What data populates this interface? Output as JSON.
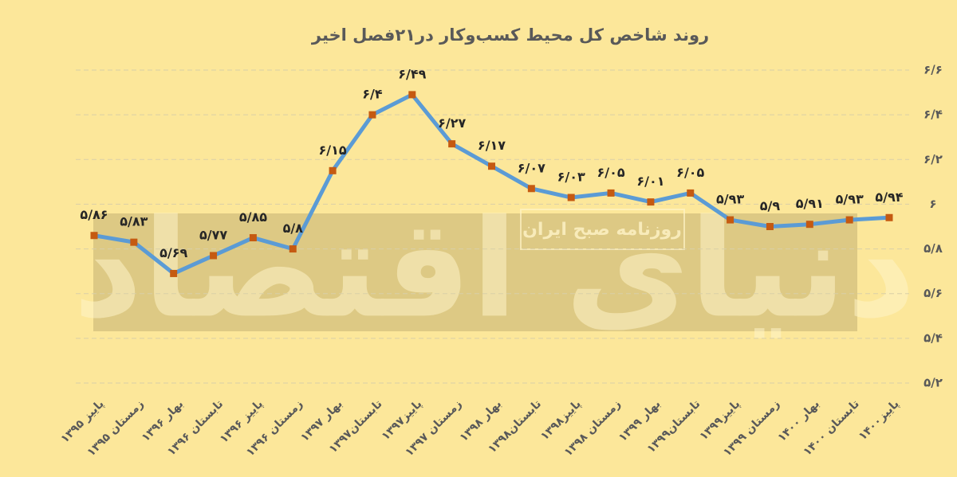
{
  "chart_data": {
    "type": "line",
    "title": "روند شاخص کل محیط کسب‌وکار در۲۱فصل اخیر",
    "watermark": "روزنامه صبح ایران",
    "logo": "دنیای اقتصاد",
    "categories": [
      "پاییز ۱۳۹۵",
      "زمستان ۱۳۹۵",
      "بهار ۱۳۹۶",
      "تابستان ۱۳۹۶",
      "پاییز ۱۳۹۶",
      "زمستان ۱۳۹۶",
      "بهار ۱۳۹۷",
      "تابستان۱۳۹۷",
      "پاییز۱۳۹۷",
      "زمستان ۱۳۹۷",
      "بهار ۱۳۹۸",
      "تابستان۱۳۹۸",
      "پاییز۱۳۹۸",
      "زمستان ۱۳۹۸",
      "بهار ۱۳۹۹",
      "تابستان۱۳۹۹",
      "پاییز۱۳۹۹",
      "زمستان ۱۳۹۹",
      "بهار ۱۴۰۰",
      "تابستان ۱۴۰۰",
      "پاییز۱۴۰۰"
    ],
    "values": [
      5.86,
      5.83,
      5.69,
      5.77,
      5.85,
      5.8,
      6.15,
      6.4,
      6.49,
      6.27,
      6.17,
      6.07,
      6.03,
      6.05,
      6.01,
      6.05,
      5.93,
      5.9,
      5.91,
      5.93,
      5.94
    ],
    "value_labels": [
      "۵/۸۶",
      "۵/۸۳",
      "۵/۶۹",
      "۵/۷۷",
      "۵/۸۵",
      "۵/۸",
      "۶/۱۵",
      "۶/۴",
      "۶/۴۹",
      "۶/۲۷",
      "۶/۱۷",
      "۶/۰۷",
      "۶/۰۳",
      "۶/۰۵",
      "۶/۰۱",
      "۶/۰۵",
      "۵/۹۳",
      "۵/۹",
      "۵/۹۱",
      "۵/۹۳",
      "۵/۹۴"
    ],
    "color": "#5b9bd5",
    "marker_color": "#c55a11",
    "ylim": [
      5.2,
      6.6
    ],
    "yticks": [
      {
        "value": 5.2,
        "label": "۵/۲"
      },
      {
        "value": 5.4,
        "label": "۵/۴"
      },
      {
        "value": 5.6,
        "label": "۵/۶"
      },
      {
        "value": 5.8,
        "label": "۵/۸"
      },
      {
        "value": 6,
        "label": "۶"
      },
      {
        "value": 6.2,
        "label": "۶/۲"
      },
      {
        "value": 6.4,
        "label": "۶/۴"
      },
      {
        "value": 6.6,
        "label": "۶/۶"
      }
    ],
    "grid": true
  }
}
